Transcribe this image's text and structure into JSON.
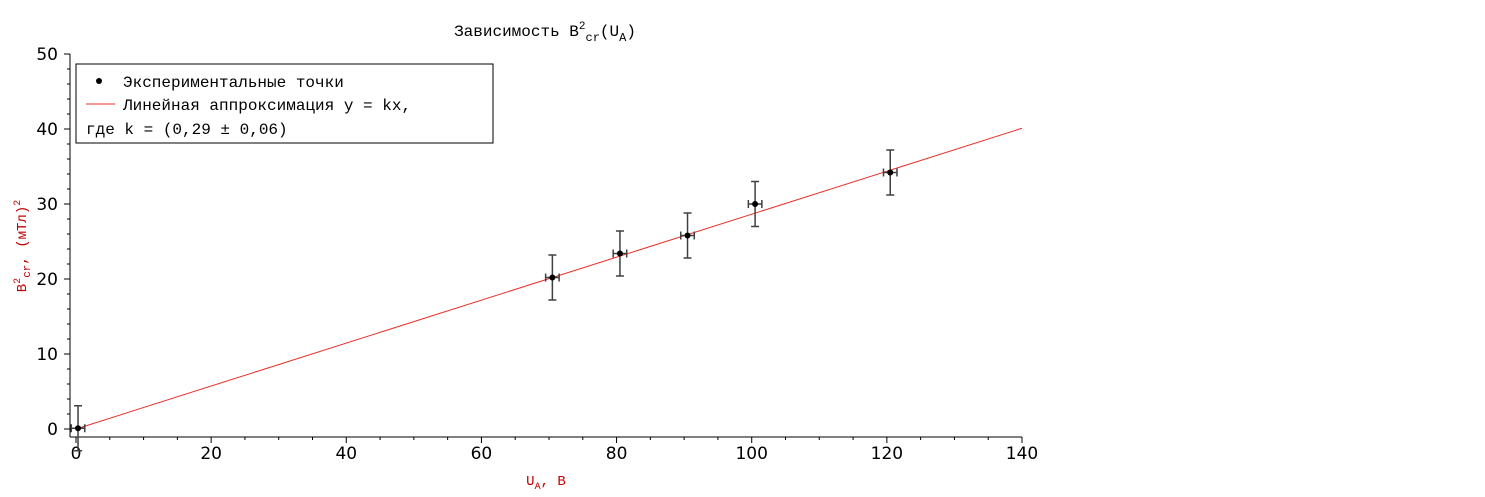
{
  "chart_data": {
    "type": "scatter",
    "title": {
      "prefix": "Зависимость B",
      "sup": "2",
      "sub": "cr",
      "mid": "(U",
      "sub2": "A",
      "suffix": ")"
    },
    "xlabel": {
      "main": "U",
      "sub": "A",
      "rest": ", В"
    },
    "ylabel": {
      "main": "B",
      "sup": "2",
      "sub": "cr",
      "rest": ", (мТл)",
      "sup2": "2"
    },
    "xlim": [
      0,
      140
    ],
    "ylim": [
      0,
      50
    ],
    "x_ticks": [
      0,
      20,
      40,
      60,
      80,
      100,
      120,
      140
    ],
    "y_ticks": [
      0,
      10,
      20,
      30,
      40,
      50
    ],
    "grid": false,
    "legend_position": "top-left",
    "legend": {
      "points_label": "Экспериментальные точки",
      "line_label_1": "Линейная аппроксимация y = kx,",
      "line_label_2": "где k = (0,29 ± 0,06)"
    },
    "colors": {
      "points": "#000000",
      "fit_line": "#e8302a",
      "error_bars": "#404040"
    },
    "series": [
      {
        "kind": "points",
        "x": [
          0.3,
          70.5,
          80.5,
          90.5,
          100.5,
          120.5
        ],
        "y": [
          0.1,
          20.2,
          23.4,
          25.8,
          30.0,
          34.2
        ],
        "x_err": [
          1.0,
          1.0,
          1.0,
          1.0,
          1.0,
          1.0
        ],
        "y_err": [
          3.0,
          3.0,
          3.0,
          3.0,
          3.0,
          3.0
        ]
      },
      {
        "kind": "fit_line",
        "k": 0.2864,
        "x_range": [
          0,
          140
        ]
      }
    ]
  }
}
